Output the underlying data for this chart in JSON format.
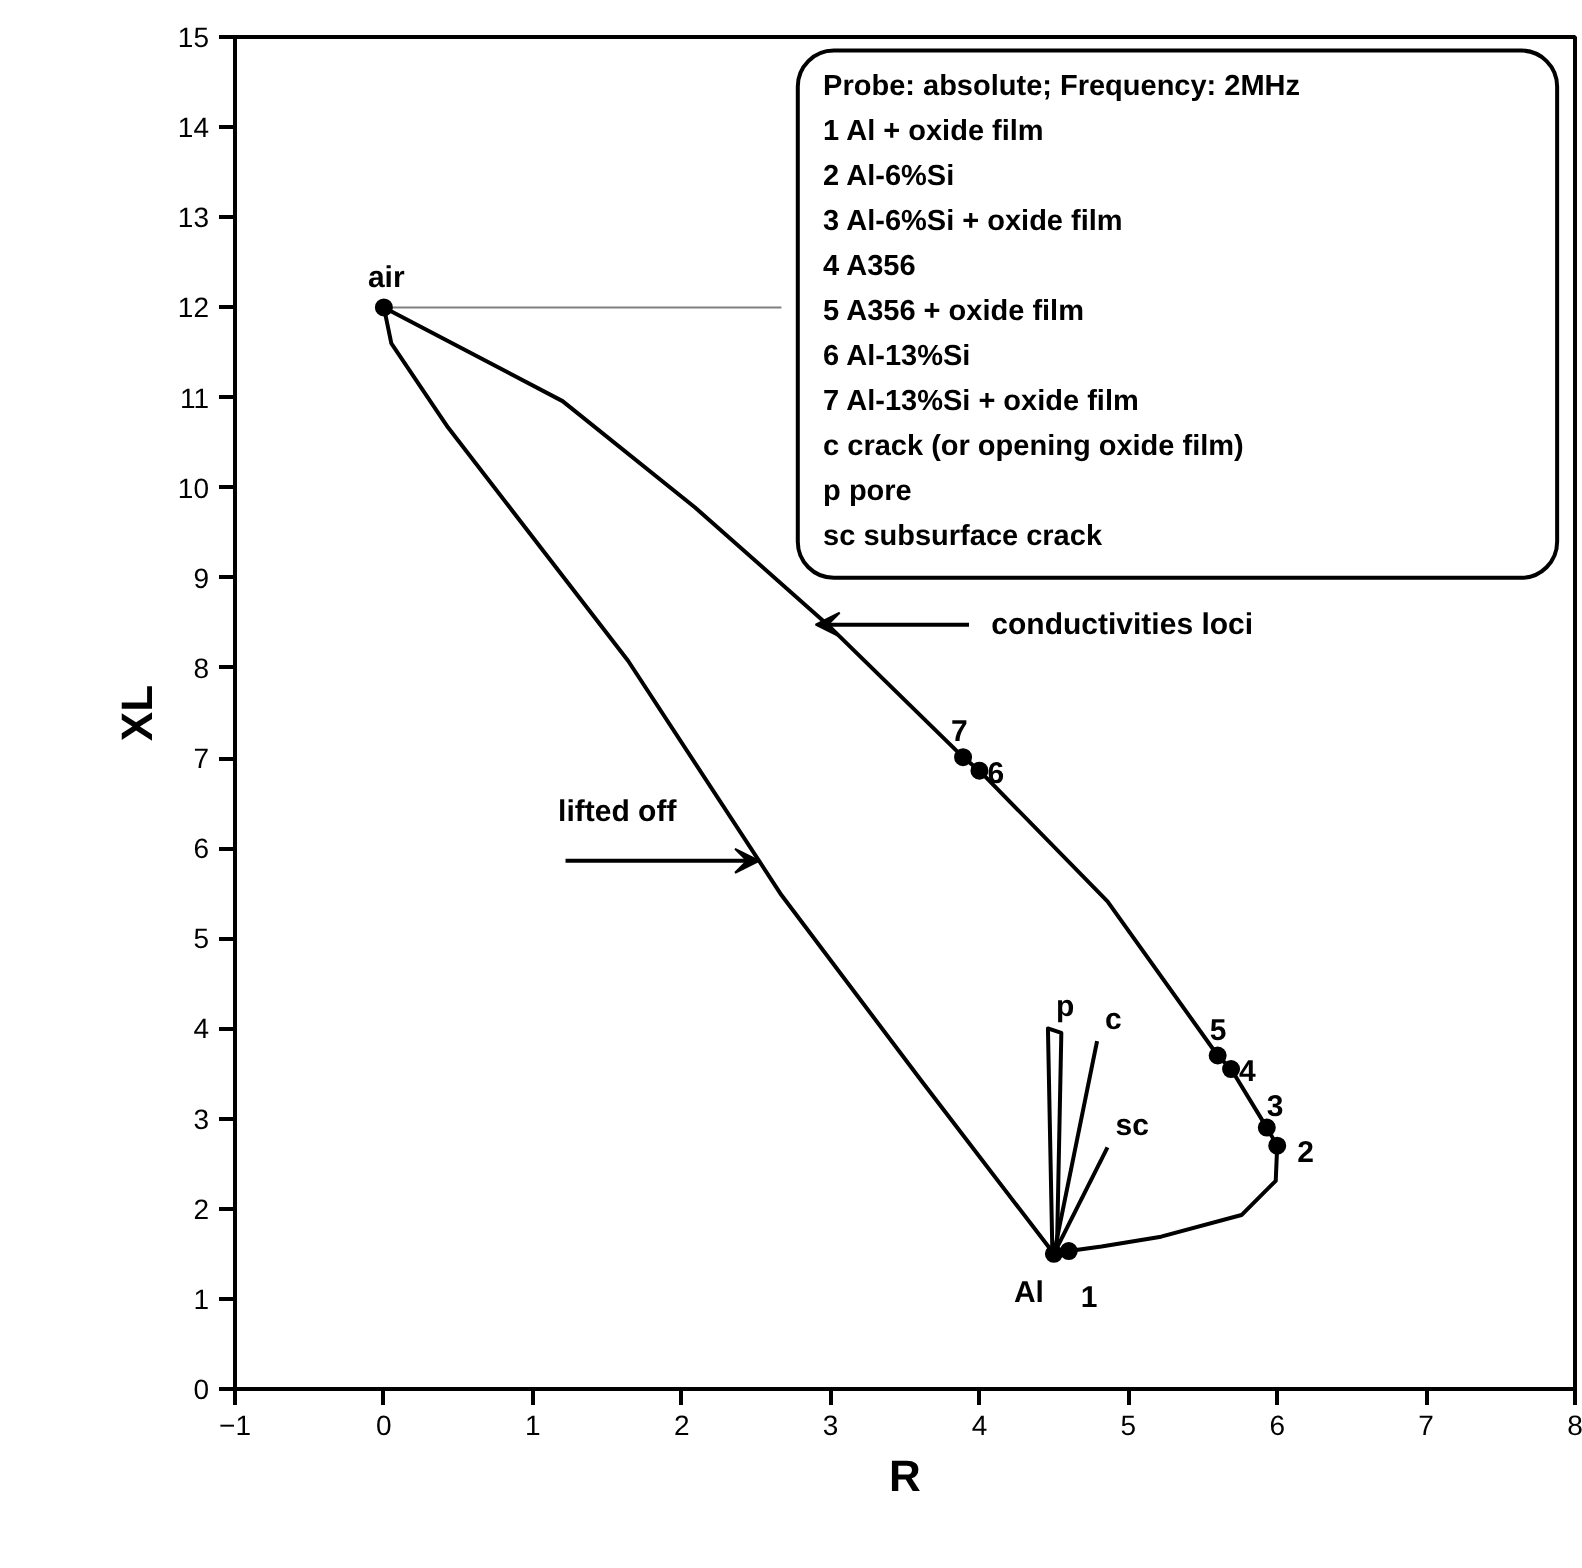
{
  "chart_data": {
    "type": "line",
    "xlabel": "R",
    "ylabel": "XL",
    "xlim": [
      -1,
      8
    ],
    "ylim": [
      0,
      15
    ],
    "xticks": [
      -1,
      0,
      1,
      2,
      3,
      4,
      5,
      6,
      7,
      8
    ],
    "yticks": [
      0,
      1,
      2,
      3,
      4,
      5,
      6,
      7,
      8,
      9,
      10,
      11,
      12,
      13,
      14,
      15
    ],
    "grid": false,
    "series": [
      {
        "color": "#000000",
        "x": [
          0,
          1.2,
          2.09,
          2.98,
          3.89,
          4.0,
          4.86,
          5.6,
          5.69,
          5.93,
          6.0,
          5.99,
          5.76,
          5.22,
          4.82,
          4.6,
          4.5
        ],
        "values": [
          12.0,
          10.96,
          9.78,
          8.48,
          7.01,
          6.86,
          5.41,
          3.7,
          3.55,
          2.9,
          2.7,
          2.31,
          1.93,
          1.69,
          1.58,
          1.53,
          1.5
        ]
      },
      {
        "color": "#000000",
        "x": [
          0,
          0.05,
          0.43,
          1.64,
          2.67,
          3.61,
          4.5
        ],
        "values": [
          12.0,
          11.6,
          10.67,
          8.08,
          5.48,
          3.42,
          1.5
        ]
      },
      {
        "name": "p",
        "color": "#000000",
        "x": [
          4.49,
          4.46,
          4.55,
          4.52
        ],
        "values": [
          1.5,
          4.0,
          3.95,
          1.5
        ]
      },
      {
        "name": "c",
        "color": "#000000",
        "x": [
          4.5,
          4.79
        ],
        "values": [
          1.5,
          3.86
        ]
      },
      {
        "name": "sc",
        "color": "#000000",
        "x": [
          4.5,
          4.86
        ],
        "values": [
          1.5,
          2.68
        ]
      },
      {
        "color": "#808080",
        "x": [
          0,
          2.67
        ],
        "values": [
          12,
          12
        ]
      },
      {
        "type": "scatter",
        "marker": "circle",
        "color": "#000000",
        "x": [
          0,
          4.5,
          4.6,
          6.0,
          5.93,
          5.69,
          5.6,
          4.0,
          3.89
        ],
        "values": [
          12.0,
          1.5,
          1.53,
          2.7,
          2.9,
          3.55,
          3.7,
          6.86,
          7.01
        ]
      }
    ],
    "annotations": [
      {
        "text": "air",
        "x": 0,
        "y": 12.0
      },
      {
        "text": "Al",
        "x": 4.5,
        "y": 1.5
      },
      {
        "text": "1",
        "x": 4.6,
        "y": 1.53
      },
      {
        "text": "2",
        "x": 6.0,
        "y": 2.7
      },
      {
        "text": "3",
        "x": 5.93,
        "y": 2.9
      },
      {
        "text": "4",
        "x": 5.69,
        "y": 3.55
      },
      {
        "text": "5",
        "x": 5.6,
        "y": 3.7
      },
      {
        "text": "6",
        "x": 4.0,
        "y": 6.86
      },
      {
        "text": "7",
        "x": 3.89,
        "y": 7.01
      },
      {
        "text": "conductivities loci",
        "x": 2.98,
        "y": 8.48
      },
      {
        "text": "lifted off",
        "x": 2.52,
        "y": 5.86
      },
      "Probe: absolute; Frequency: 2MHz",
      "1   Al + oxide film",
      "2   Al-6%Si",
      "3   Al-6%Si + oxide film",
      "4   A356",
      "5   A356 + oxide film",
      "6   Al-13%Si",
      "7   Al-13%Si + oxide film",
      "c   crack (or opening oxide film)",
      "p   pore",
      "sc subsurface crack"
    ]
  }
}
